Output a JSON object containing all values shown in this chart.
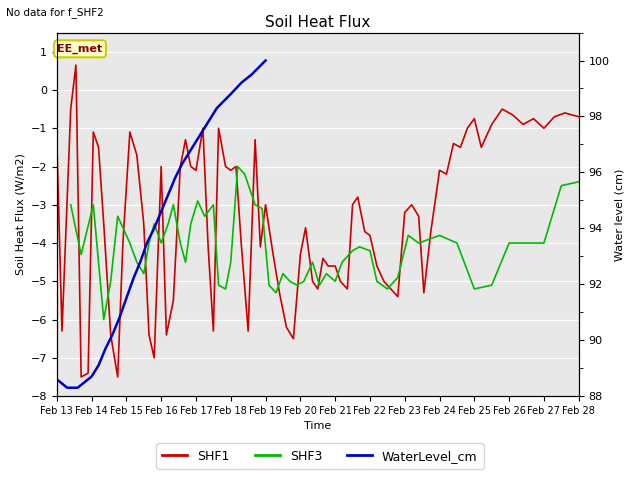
{
  "title": "Soil Heat Flux",
  "subtitle": "No data for f_SHF2",
  "xlabel": "Time",
  "ylabel_left": "Soil Heat Flux (W/m2)",
  "ylabel_right": "Water level (cm)",
  "annotation": "EE_met",
  "ylim_left": [
    -8.0,
    1.5
  ],
  "ylim_right": [
    88,
    101
  ],
  "yticks_left": [
    -8,
    -7,
    -6,
    -5,
    -4,
    -3,
    -2,
    -1,
    0,
    1
  ],
  "yticks_right": [
    88,
    90,
    92,
    94,
    96,
    98,
    100
  ],
  "background_color": "#e8e8e8",
  "grid_color": "white",
  "shf1_color": "#cc0000",
  "shf3_color": "#00bb00",
  "water_color": "#0000cc",
  "legend_items": [
    "SHF1",
    "SHF3",
    "WaterLevel_cm"
  ],
  "shf1_x": [
    0.0,
    0.15,
    0.4,
    0.55,
    0.7,
    0.9,
    1.05,
    1.2,
    1.35,
    1.55,
    1.75,
    1.9,
    2.1,
    2.3,
    2.5,
    2.65,
    2.8,
    3.0,
    3.15,
    3.35,
    3.55,
    3.7,
    3.85,
    4.0,
    4.2,
    4.35,
    4.5,
    4.65,
    4.85,
    5.0,
    5.15,
    5.3,
    5.5,
    5.7,
    5.85,
    6.0,
    6.2,
    6.4,
    6.6,
    6.8,
    7.0,
    7.15,
    7.35,
    7.5,
    7.65,
    7.8,
    8.0,
    8.15,
    8.35,
    8.5,
    8.65,
    8.85,
    9.0,
    9.2,
    9.4,
    9.6,
    9.8,
    10.0,
    10.2,
    10.4,
    10.55,
    10.75,
    11.0,
    11.2,
    11.4,
    11.6,
    11.8,
    12.0,
    12.2,
    12.5,
    12.8,
    13.1,
    13.4,
    13.7,
    14.0,
    14.3,
    14.6,
    15.0
  ],
  "shf1_y": [
    -1.3,
    -6.3,
    -0.5,
    0.65,
    -7.5,
    -7.4,
    -1.1,
    -1.5,
    -3.5,
    -6.4,
    -7.5,
    -4.0,
    -1.1,
    -1.7,
    -3.5,
    -6.4,
    -7.0,
    -2.0,
    -6.4,
    -5.5,
    -2.0,
    -1.3,
    -2.0,
    -2.1,
    -1.0,
    -4.1,
    -6.3,
    -1.0,
    -2.0,
    -2.1,
    -2.0,
    -4.0,
    -6.3,
    -1.3,
    -4.1,
    -3.0,
    -4.2,
    -5.3,
    -6.2,
    -6.5,
    -4.3,
    -3.6,
    -5.0,
    -5.2,
    -4.4,
    -4.6,
    -4.6,
    -5.0,
    -5.2,
    -3.0,
    -2.8,
    -3.7,
    -3.8,
    -4.6,
    -5.0,
    -5.2,
    -5.4,
    -3.2,
    -3.0,
    -3.3,
    -5.3,
    -3.7,
    -2.1,
    -2.2,
    -1.4,
    -1.5,
    -1.0,
    -0.75,
    -1.5,
    -0.9,
    -0.5,
    -0.65,
    -0.9,
    -0.75,
    -1.0,
    -0.7,
    -0.6,
    -0.7
  ],
  "shf3_x": [
    0.4,
    0.7,
    1.05,
    1.35,
    1.55,
    1.75,
    2.1,
    2.3,
    2.5,
    2.65,
    2.8,
    3.0,
    3.2,
    3.35,
    3.55,
    3.7,
    3.85,
    4.05,
    4.25,
    4.5,
    4.65,
    4.85,
    5.0,
    5.2,
    5.4,
    5.7,
    5.9,
    6.1,
    6.3,
    6.5,
    6.7,
    6.9,
    7.1,
    7.35,
    7.55,
    7.75,
    8.0,
    8.2,
    8.5,
    8.7,
    9.0,
    9.2,
    9.5,
    9.8,
    10.1,
    10.4,
    10.7,
    11.0,
    11.5,
    12.0,
    12.5,
    13.0,
    13.5,
    14.0,
    14.5,
    15.0
  ],
  "shf3_y": [
    -3.0,
    -4.3,
    -3.0,
    -6.0,
    -5.0,
    -3.3,
    -4.0,
    -4.5,
    -4.8,
    -4.0,
    -3.5,
    -4.0,
    -3.5,
    -3.0,
    -4.0,
    -4.5,
    -3.5,
    -2.9,
    -3.3,
    -3.0,
    -5.1,
    -5.2,
    -4.5,
    -2.0,
    -2.2,
    -3.0,
    -3.1,
    -5.1,
    -5.3,
    -4.8,
    -5.0,
    -5.1,
    -5.0,
    -4.5,
    -5.1,
    -4.8,
    -5.0,
    -4.5,
    -4.2,
    -4.1,
    -4.2,
    -5.0,
    -5.2,
    -4.9,
    -3.8,
    -4.0,
    -3.9,
    -3.8,
    -4.0,
    -5.2,
    -5.1,
    -4.0,
    -4.0,
    -4.0,
    -2.5,
    -2.4
  ],
  "water_x": [
    0.0,
    0.1,
    0.2,
    0.3,
    0.5,
    0.6,
    0.7,
    0.8,
    1.0,
    1.2,
    1.4,
    1.6,
    1.8,
    2.0,
    2.2,
    2.4,
    2.6,
    2.8,
    3.0,
    3.2,
    3.4,
    3.6,
    3.8,
    4.0,
    4.2,
    4.4,
    4.6,
    5.0,
    5.3,
    5.6,
    6.0
  ],
  "water_y": [
    88.6,
    88.5,
    88.4,
    88.3,
    88.3,
    88.3,
    88.4,
    88.5,
    88.7,
    89.1,
    89.7,
    90.2,
    90.8,
    91.5,
    92.2,
    92.8,
    93.5,
    94.0,
    94.6,
    95.2,
    95.8,
    96.3,
    96.7,
    97.1,
    97.5,
    97.9,
    98.3,
    98.8,
    99.2,
    99.5,
    100.0
  ],
  "xtick_positions": [
    0,
    1,
    2,
    3,
    4,
    5,
    6,
    7,
    8,
    9,
    10,
    11,
    12,
    13,
    14,
    15
  ],
  "xtick_labels": [
    "Feb 13",
    "Feb 14",
    "Feb 15",
    "Feb 16",
    "Feb 17",
    "Feb 18",
    "Feb 19",
    "Feb 20",
    "Feb 21",
    "Feb 22",
    "Feb 23",
    "Feb 24",
    "Feb 25",
    "Feb 26",
    "Feb 27",
    "Feb 28"
  ]
}
